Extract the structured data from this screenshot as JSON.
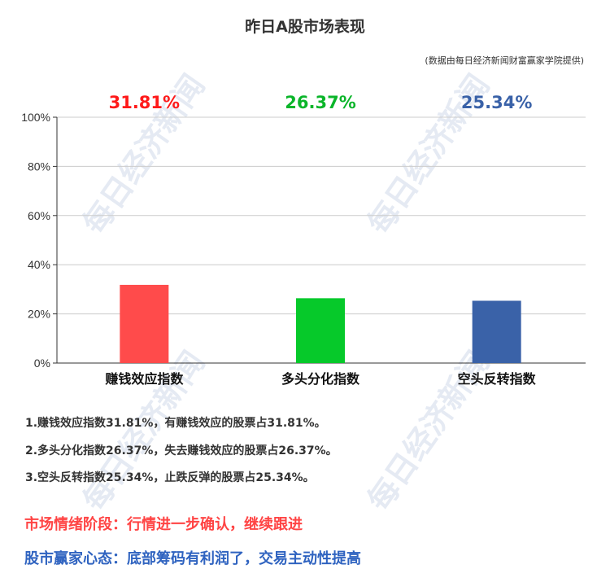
{
  "title": "昨日A股市场表现",
  "source": "(数据由每日经济新闻财富赢家学院提供)",
  "watermark": "每日经济新闻",
  "chart_data": {
    "type": "bar",
    "categories": [
      "赚钱效应指数",
      "多头分化指数",
      "空头反转指数"
    ],
    "values": [
      31.81,
      26.37,
      25.34
    ],
    "value_labels": [
      "31.81%",
      "26.37%",
      "25.34%"
    ],
    "colors": [
      "#ff4b4b",
      "#06c92a",
      "#3a62a8"
    ],
    "label_colors": [
      "#ff1a1a",
      "#0bb52a",
      "#3a62a8"
    ],
    "ylim": [
      0,
      100
    ],
    "yticks": [
      "0%",
      "20%",
      "40%",
      "60%",
      "80%",
      "100%"
    ],
    "grid": true
  },
  "notes": [
    "1.赚钱效应指数31.81%，有赚钱效应的股票占31.81%。",
    "2.多头分化指数26.37%，失去赚钱效应的股票占26.37%。",
    "3.空头反转指数25.34%，止跌反弹的股票占25.34%。"
  ],
  "stage": {
    "text": "市场情绪阶段：行情进一步确认，继续跟进",
    "color": "#ff4444"
  },
  "mindset": {
    "text": "股市赢家心态：底部筹码有利润了，交易主动性提高",
    "color": "#2f63c0"
  }
}
